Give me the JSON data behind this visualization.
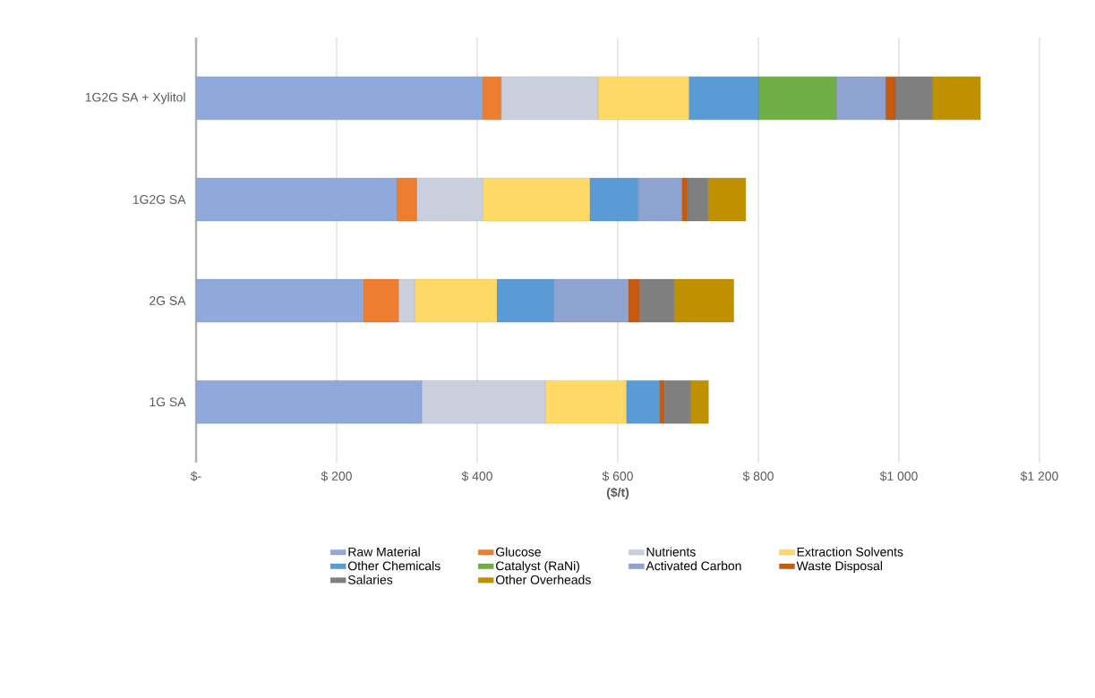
{
  "chart_data": {
    "type": "bar",
    "orientation": "horizontal",
    "stacked": true,
    "categories": [
      "1G2G SA + Xylitol",
      "1G2G SA",
      "2G SA",
      "1G SA"
    ],
    "xlabel": "($/t)",
    "xlim": [
      0,
      1200
    ],
    "xticks": [
      {
        "value": 0,
        "label": "$-"
      },
      {
        "value": 200,
        "label": "$ 200"
      },
      {
        "value": 400,
        "label": "$ 400"
      },
      {
        "value": 600,
        "label": "$ 600"
      },
      {
        "value": 800,
        "label": "$ 800"
      },
      {
        "value": 1000,
        "label": "$1 000"
      },
      {
        "value": 1200,
        "label": "$1 200"
      }
    ],
    "grid": "x",
    "legend": "bottom",
    "series": [
      {
        "name": "Raw Material",
        "color": "#8fa9dc",
        "values": [
          407,
          285,
          238,
          321
        ]
      },
      {
        "name": "Glucose",
        "color": "#ed7d31",
        "values": [
          27,
          29,
          50,
          0
        ]
      },
      {
        "name": "Nutrients",
        "color": "#c9cfdc",
        "values": [
          138,
          94,
          23,
          176
        ]
      },
      {
        "name": "Extraction Solvents",
        "color": "#ffd966",
        "values": [
          129,
          152,
          117,
          115
        ]
      },
      {
        "name": "Other Chemicals",
        "color": "#5b9bd5",
        "values": [
          99,
          69,
          81,
          47
        ]
      },
      {
        "name": "Catalyst (RaNi)",
        "color": "#70ad47",
        "values": [
          111,
          0,
          0,
          0
        ]
      },
      {
        "name": "Activated Carbon",
        "color": "#8ea3cf",
        "values": [
          70,
          62,
          106,
          0
        ]
      },
      {
        "name": "Waste Disposal",
        "color": "#c55a11",
        "values": [
          14,
          8,
          16,
          6
        ]
      },
      {
        "name": "Salaries",
        "color": "#7f7f7f",
        "values": [
          52,
          29,
          49,
          38
        ]
      },
      {
        "name": "Other Overheads",
        "color": "#bf9000",
        "values": [
          69,
          54,
          85,
          26
        ]
      }
    ]
  }
}
